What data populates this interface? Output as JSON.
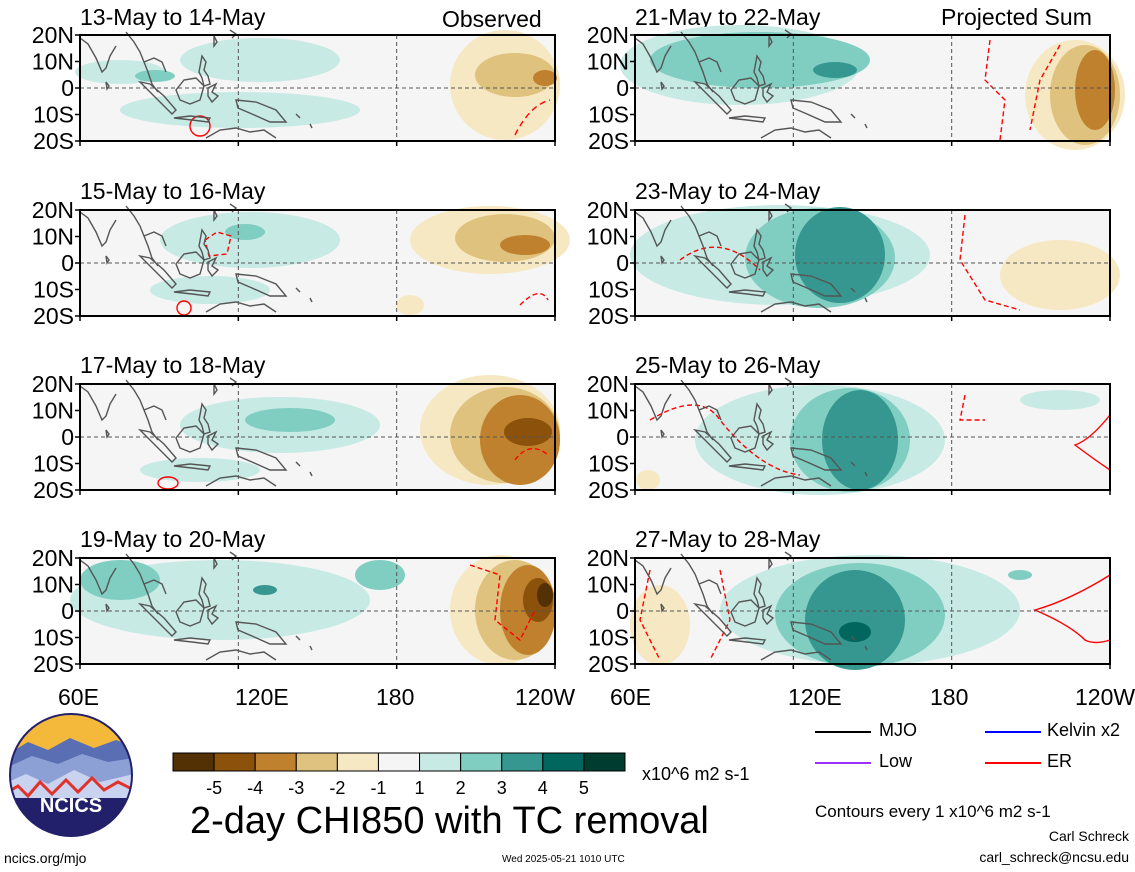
{
  "title": "2-day CHI850 with TC removal",
  "labels": {
    "observed": "Observed",
    "projected": "Projected Sum"
  },
  "panels": [
    {
      "title": "13-May to 14-May"
    },
    {
      "title": "15-May to 16-May"
    },
    {
      "title": "17-May to 18-May"
    },
    {
      "title": "19-May to 20-May"
    },
    {
      "title": "21-May to 22-May"
    },
    {
      "title": "23-May to 24-May"
    },
    {
      "title": "25-May to 26-May"
    },
    {
      "title": "27-May to 28-May"
    }
  ],
  "colorbar": {
    "ticks": [
      "-5",
      "-4",
      "-3",
      "-2",
      "-1",
      "1",
      "2",
      "3",
      "4",
      "5"
    ],
    "colors": [
      "#543005",
      "#8c510a",
      "#bf812d",
      "#dfc27d",
      "#f6e8c3",
      "#f5f5f5",
      "#c7eae5",
      "#80cdc1",
      "#35978f",
      "#01665e",
      "#003c30"
    ],
    "units": "x10^6 m2 s-1"
  },
  "contour_legend": [
    {
      "label": "MJO",
      "color": "#000000"
    },
    {
      "label": "Kelvin x2",
      "color": "#0000ff"
    },
    {
      "label": "Low",
      "color": "#9b30ff"
    },
    {
      "label": "ER",
      "color": "#ff0000"
    }
  ],
  "contour_note": "Contours every 1 x10^6 m2 s-1",
  "footer": {
    "left": "ncics.org/mjo",
    "center": "Wed 2025-05-21 1010 UTC",
    "author": "Carl Schreck",
    "email": "carl_schreck@ncsu.edu"
  },
  "logo_text": "NCICS",
  "chart_data": {
    "type": "heatmap",
    "variable": "2-day CHI850 with TC removal",
    "x_ticks": [
      "60E",
      "120E",
      "180",
      "120W"
    ],
    "y_ticks": [
      "20N",
      "10N",
      "0",
      "10S",
      "20S"
    ],
    "xlim": [
      "60E",
      "120W"
    ],
    "ylim": [
      "20S",
      "20N"
    ],
    "contour_interval": 1,
    "color_levels": [
      -5,
      -4,
      -3,
      -2,
      -1,
      1,
      2,
      3,
      4,
      5
    ]
  }
}
